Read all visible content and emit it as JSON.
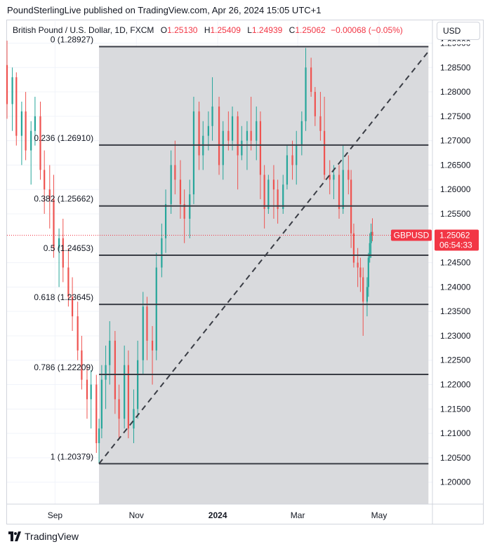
{
  "publisher_line": "PoundSterlingLive published on TradingView.com, Apr 26, 2024 15:05 UTC+1",
  "legend": {
    "symbol": "British Pound / U.S. Dollar, 1D, FXCM",
    "open_label": "O",
    "open": "1.25130",
    "high_label": "H",
    "high": "1.25409",
    "low_label": "L",
    "low": "1.24939",
    "close_label": "C",
    "close": "1.25062",
    "change": "−0.00068 (−0.05%)"
  },
  "currency_button": "USD",
  "footer": {
    "brand": "TradingView"
  },
  "colors": {
    "up": "#26a69a",
    "down": "#ef5350",
    "fib_zone": "#d9dadd",
    "fib_line": "#3a3d45",
    "price_tag": "#f23645",
    "grid": "#f0f3fa"
  },
  "chart_data": {
    "type": "candlestick",
    "title": "",
    "symbol": "GBPUSD",
    "timeframe": "1D",
    "y_ticks": [
      1.29,
      1.285,
      1.28,
      1.275,
      1.27,
      1.265,
      1.26,
      1.255,
      1.245,
      1.24,
      1.235,
      1.23,
      1.225,
      1.22,
      1.215,
      1.21,
      1.205,
      1.2
    ],
    "y_tick_labels": [
      "1.29000",
      "1.28500",
      "1.28000",
      "1.27500",
      "1.27000",
      "1.26500",
      "1.26000",
      "1.25500",
      "1.24500",
      "1.24000",
      "1.23500",
      "1.23000",
      "1.22500",
      "1.22000",
      "1.21500",
      "1.21000",
      "1.20500",
      "1.20000"
    ],
    "ylim": [
      1.1955,
      1.2905
    ],
    "x_labels": [
      {
        "label": "Sep",
        "date": "2023-09-01",
        "bold": false
      },
      {
        "label": "Nov",
        "date": "2023-11-01",
        "bold": false
      },
      {
        "label": "2024",
        "date": "2024-01-01",
        "bold": true
      },
      {
        "label": "Mar",
        "date": "2024-03-01",
        "bold": false
      },
      {
        "label": "May",
        "date": "2024-05-01",
        "bold": false
      }
    ],
    "xlim": [
      "2023-07-27",
      "2024-06-10"
    ],
    "fib_retracement": {
      "start_date": "2023-10-04",
      "end_date": "2024-06-07",
      "low": 1.20379,
      "high": 1.28927,
      "levels": [
        {
          "ratio": "0",
          "price": 1.28927
        },
        {
          "ratio": "0.236",
          "price": 1.2691
        },
        {
          "ratio": "0.382",
          "price": 1.25662
        },
        {
          "ratio": "0.5",
          "price": 1.24653
        },
        {
          "ratio": "0.618",
          "price": 1.23645
        },
        {
          "ratio": "0.786",
          "price": 1.22209
        },
        {
          "ratio": "1",
          "price": 1.20379
        }
      ],
      "labels": [
        "0 (1.28927)",
        "0.236 (1.26910)",
        "0.382 (1.25662)",
        "0.5 (1.24653)",
        "0.618 (1.23645)",
        "0.786 (1.22209)",
        "1 (1.20379)"
      ]
    },
    "trend_line": {
      "start_date": "2023-10-04",
      "start": 1.20379,
      "end_date": "2024-06-07",
      "end": 1.2883
    },
    "last_price": {
      "label": "GBPUSD",
      "price": 1.25062,
      "price_text": "1.25062",
      "countdown": "06:54:33"
    },
    "candles": [
      {
        "date": "2023-07-27",
        "o": 1.2855,
        "h": 1.2905,
        "l": 1.2745,
        "c": 1.2775
      },
      {
        "date": "2023-07-31",
        "o": 1.2775,
        "h": 1.285,
        "l": 1.272,
        "c": 1.283
      },
      {
        "date": "2023-08-03",
        "o": 1.283,
        "h": 1.284,
        "l": 1.269,
        "c": 1.271
      },
      {
        "date": "2023-08-07",
        "o": 1.271,
        "h": 1.278,
        "l": 1.265,
        "c": 1.276
      },
      {
        "date": "2023-08-10",
        "o": 1.276,
        "h": 1.28,
        "l": 1.266,
        "c": 1.268
      },
      {
        "date": "2023-08-14",
        "o": 1.268,
        "h": 1.274,
        "l": 1.261,
        "c": 1.272
      },
      {
        "date": "2023-08-17",
        "o": 1.272,
        "h": 1.279,
        "l": 1.269,
        "c": 1.275
      },
      {
        "date": "2023-08-21",
        "o": 1.275,
        "h": 1.278,
        "l": 1.262,
        "c": 1.264
      },
      {
        "date": "2023-08-24",
        "o": 1.264,
        "h": 1.268,
        "l": 1.255,
        "c": 1.26
      },
      {
        "date": "2023-08-28",
        "o": 1.26,
        "h": 1.265,
        "l": 1.252,
        "c": 1.258
      },
      {
        "date": "2023-08-31",
        "o": 1.258,
        "h": 1.263,
        "l": 1.246,
        "c": 1.248
      },
      {
        "date": "2023-09-04",
        "o": 1.248,
        "h": 1.252,
        "l": 1.24,
        "c": 1.25
      },
      {
        "date": "2023-09-07",
        "o": 1.25,
        "h": 1.254,
        "l": 1.241,
        "c": 1.244
      },
      {
        "date": "2023-09-11",
        "o": 1.244,
        "h": 1.248,
        "l": 1.236,
        "c": 1.238
      },
      {
        "date": "2023-09-14",
        "o": 1.238,
        "h": 1.242,
        "l": 1.231,
        "c": 1.234
      },
      {
        "date": "2023-09-18",
        "o": 1.234,
        "h": 1.237,
        "l": 1.225,
        "c": 1.227
      },
      {
        "date": "2023-09-21",
        "o": 1.227,
        "h": 1.23,
        "l": 1.219,
        "c": 1.221
      },
      {
        "date": "2023-09-25",
        "o": 1.221,
        "h": 1.224,
        "l": 1.213,
        "c": 1.217
      },
      {
        "date": "2023-09-28",
        "o": 1.217,
        "h": 1.223,
        "l": 1.211,
        "c": 1.22
      },
      {
        "date": "2023-10-02",
        "o": 1.22,
        "h": 1.222,
        "l": 1.206,
        "c": 1.208
      },
      {
        "date": "2023-10-04",
        "o": 1.208,
        "h": 1.213,
        "l": 1.2038,
        "c": 1.211
      },
      {
        "date": "2023-10-06",
        "o": 1.211,
        "h": 1.224,
        "l": 1.209,
        "c": 1.221
      },
      {
        "date": "2023-10-09",
        "o": 1.221,
        "h": 1.228,
        "l": 1.215,
        "c": 1.224
      },
      {
        "date": "2023-10-12",
        "o": 1.224,
        "h": 1.233,
        "l": 1.22,
        "c": 1.229
      },
      {
        "date": "2023-10-16",
        "o": 1.229,
        "h": 1.231,
        "l": 1.214,
        "c": 1.217
      },
      {
        "date": "2023-10-19",
        "o": 1.217,
        "h": 1.22,
        "l": 1.209,
        "c": 1.213
      },
      {
        "date": "2023-10-23",
        "o": 1.213,
        "h": 1.228,
        "l": 1.211,
        "c": 1.224
      },
      {
        "date": "2023-10-26",
        "o": 1.224,
        "h": 1.227,
        "l": 1.209,
        "c": 1.211
      },
      {
        "date": "2023-10-30",
        "o": 1.211,
        "h": 1.219,
        "l": 1.208,
        "c": 1.215
      },
      {
        "date": "2023-11-02",
        "o": 1.215,
        "h": 1.229,
        "l": 1.213,
        "c": 1.225
      },
      {
        "date": "2023-11-06",
        "o": 1.225,
        "h": 1.239,
        "l": 1.222,
        "c": 1.236
      },
      {
        "date": "2023-11-09",
        "o": 1.236,
        "h": 1.238,
        "l": 1.225,
        "c": 1.229
      },
      {
        "date": "2023-11-13",
        "o": 1.229,
        "h": 1.232,
        "l": 1.22,
        "c": 1.227
      },
      {
        "date": "2023-11-16",
        "o": 1.227,
        "h": 1.247,
        "l": 1.225,
        "c": 1.244
      },
      {
        "date": "2023-11-20",
        "o": 1.244,
        "h": 1.253,
        "l": 1.242,
        "c": 1.25
      },
      {
        "date": "2023-11-23",
        "o": 1.25,
        "h": 1.26,
        "l": 1.247,
        "c": 1.257
      },
      {
        "date": "2023-11-27",
        "o": 1.257,
        "h": 1.268,
        "l": 1.255,
        "c": 1.265
      },
      {
        "date": "2023-11-30",
        "o": 1.265,
        "h": 1.27,
        "l": 1.259,
        "c": 1.262
      },
      {
        "date": "2023-12-04",
        "o": 1.262,
        "h": 1.266,
        "l": 1.254,
        "c": 1.257
      },
      {
        "date": "2023-12-07",
        "o": 1.257,
        "h": 1.26,
        "l": 1.249,
        "c": 1.254
      },
      {
        "date": "2023-12-11",
        "o": 1.254,
        "h": 1.262,
        "l": 1.25,
        "c": 1.259
      },
      {
        "date": "2023-12-14",
        "o": 1.259,
        "h": 1.279,
        "l": 1.257,
        "c": 1.276
      },
      {
        "date": "2023-12-18",
        "o": 1.276,
        "h": 1.278,
        "l": 1.264,
        "c": 1.267
      },
      {
        "date": "2023-12-21",
        "o": 1.267,
        "h": 1.274,
        "l": 1.264,
        "c": 1.271
      },
      {
        "date": "2023-12-25",
        "o": 1.271,
        "h": 1.276,
        "l": 1.268,
        "c": 1.273
      },
      {
        "date": "2023-12-28",
        "o": 1.273,
        "h": 1.283,
        "l": 1.27,
        "c": 1.277
      },
      {
        "date": "2024-01-02",
        "o": 1.277,
        "h": 1.279,
        "l": 1.263,
        "c": 1.265
      },
      {
        "date": "2024-01-05",
        "o": 1.265,
        "h": 1.274,
        "l": 1.262,
        "c": 1.272
      },
      {
        "date": "2024-01-09",
        "o": 1.272,
        "h": 1.276,
        "l": 1.268,
        "c": 1.27
      },
      {
        "date": "2024-01-12",
        "o": 1.27,
        "h": 1.277,
        "l": 1.268,
        "c": 1.275
      },
      {
        "date": "2024-01-16",
        "o": 1.275,
        "h": 1.276,
        "l": 1.26,
        "c": 1.267
      },
      {
        "date": "2024-01-19",
        "o": 1.267,
        "h": 1.273,
        "l": 1.266,
        "c": 1.27
      },
      {
        "date": "2024-01-23",
        "o": 1.27,
        "h": 1.274,
        "l": 1.264,
        "c": 1.272
      },
      {
        "date": "2024-01-26",
        "o": 1.272,
        "h": 1.279,
        "l": 1.268,
        "c": 1.27
      },
      {
        "date": "2024-01-30",
        "o": 1.27,
        "h": 1.277,
        "l": 1.266,
        "c": 1.274
      },
      {
        "date": "2024-02-02",
        "o": 1.274,
        "h": 1.276,
        "l": 1.258,
        "c": 1.263
      },
      {
        "date": "2024-02-05",
        "o": 1.263,
        "h": 1.265,
        "l": 1.252,
        "c": 1.256
      },
      {
        "date": "2024-02-08",
        "o": 1.256,
        "h": 1.263,
        "l": 1.255,
        "c": 1.262
      },
      {
        "date": "2024-02-12",
        "o": 1.262,
        "h": 1.265,
        "l": 1.254,
        "c": 1.26
      },
      {
        "date": "2024-02-15",
        "o": 1.26,
        "h": 1.262,
        "l": 1.253,
        "c": 1.256
      },
      {
        "date": "2024-02-19",
        "o": 1.256,
        "h": 1.263,
        "l": 1.255,
        "c": 1.261
      },
      {
        "date": "2024-02-22",
        "o": 1.261,
        "h": 1.269,
        "l": 1.26,
        "c": 1.267
      },
      {
        "date": "2024-02-26",
        "o": 1.267,
        "h": 1.27,
        "l": 1.262,
        "c": 1.265
      },
      {
        "date": "2024-02-29",
        "o": 1.265,
        "h": 1.272,
        "l": 1.261,
        "c": 1.269
      },
      {
        "date": "2024-03-04",
        "o": 1.269,
        "h": 1.276,
        "l": 1.267,
        "c": 1.274
      },
      {
        "date": "2024-03-07",
        "o": 1.274,
        "h": 1.289,
        "l": 1.272,
        "c": 1.285
      },
      {
        "date": "2024-03-11",
        "o": 1.285,
        "h": 1.287,
        "l": 1.279,
        "c": 1.28
      },
      {
        "date": "2024-03-14",
        "o": 1.28,
        "h": 1.281,
        "l": 1.273,
        "c": 1.275
      },
      {
        "date": "2024-03-18",
        "o": 1.275,
        "h": 1.28,
        "l": 1.27,
        "c": 1.272
      },
      {
        "date": "2024-03-21",
        "o": 1.272,
        "h": 1.279,
        "l": 1.262,
        "c": 1.263
      },
      {
        "date": "2024-03-25",
        "o": 1.263,
        "h": 1.266,
        "l": 1.259,
        "c": 1.262
      },
      {
        "date": "2024-03-28",
        "o": 1.262,
        "h": 1.265,
        "l": 1.258,
        "c": 1.263
      },
      {
        "date": "2024-04-01",
        "o": 1.263,
        "h": 1.265,
        "l": 1.254,
        "c": 1.256
      },
      {
        "date": "2024-04-04",
        "o": 1.256,
        "h": 1.269,
        "l": 1.255,
        "c": 1.264
      },
      {
        "date": "2024-04-08",
        "o": 1.264,
        "h": 1.267,
        "l": 1.259,
        "c": 1.262
      },
      {
        "date": "2024-04-10",
        "o": 1.262,
        "h": 1.264,
        "l": 1.248,
        "c": 1.251
      },
      {
        "date": "2024-04-12",
        "o": 1.251,
        "h": 1.253,
        "l": 1.244,
        "c": 1.245
      },
      {
        "date": "2024-04-15",
        "o": 1.245,
        "h": 1.248,
        "l": 1.24,
        "c": 1.244
      },
      {
        "date": "2024-04-17",
        "o": 1.244,
        "h": 1.246,
        "l": 1.239,
        "c": 1.242
      },
      {
        "date": "2024-04-19",
        "o": 1.242,
        "h": 1.244,
        "l": 1.23,
        "c": 1.237
      },
      {
        "date": "2024-04-22",
        "o": 1.237,
        "h": 1.242,
        "l": 1.234,
        "c": 1.24
      },
      {
        "date": "2024-04-23",
        "o": 1.24,
        "h": 1.247,
        "l": 1.238,
        "c": 1.246
      },
      {
        "date": "2024-04-24",
        "o": 1.246,
        "h": 1.251,
        "l": 1.245,
        "c": 1.249
      },
      {
        "date": "2024-04-25",
        "o": 1.249,
        "h": 1.253,
        "l": 1.246,
        "c": 1.2513
      },
      {
        "date": "2024-04-26",
        "o": 1.2513,
        "h": 1.25409,
        "l": 1.24939,
        "c": 1.25062
      }
    ]
  }
}
